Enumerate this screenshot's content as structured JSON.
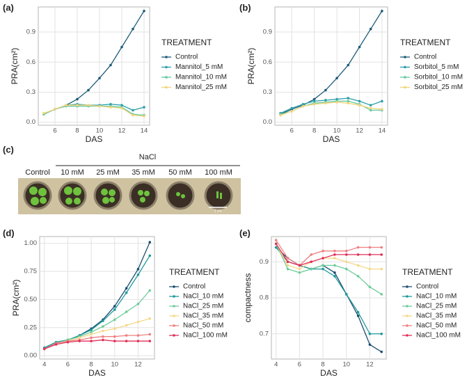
{
  "chart_data": [
    {
      "type": "line",
      "panel_label": "(a)",
      "x_label": "DAS",
      "y_label": "PRA(cm²)",
      "legend_title": "TREATMENT",
      "x": [
        5,
        6,
        7,
        8,
        9,
        10,
        11,
        12,
        13,
        14
      ],
      "xlim": [
        4.5,
        14.5
      ],
      "xticks": [
        6,
        8,
        10,
        12,
        14
      ],
      "ylim": [
        -0.03,
        1.15
      ],
      "yticks": [
        {
          "value": 0,
          "label": "0.0"
        },
        0.3,
        0.6,
        0.9
      ],
      "grid": true,
      "series": [
        {
          "name": "Control",
          "color": "#1d5b79",
          "values": [
            0.08,
            0.13,
            0.17,
            0.23,
            0.32,
            0.44,
            0.57,
            0.75,
            0.93,
            1.11
          ]
        },
        {
          "name": "Mannitol_5 mM",
          "color": "#2a9fa8",
          "values": [
            0.08,
            0.13,
            0.17,
            0.18,
            0.17,
            0.17,
            0.18,
            0.17,
            0.12,
            0.15
          ]
        },
        {
          "name": "Mannitol_10 mM",
          "color": "#63c99e",
          "values": [
            0.08,
            0.13,
            0.16,
            0.16,
            0.16,
            0.16,
            0.16,
            0.15,
            0.08,
            0.07
          ]
        },
        {
          "name": "Mannitol_25 mM",
          "color": "#f3d47c",
          "values": [
            0.09,
            0.13,
            0.17,
            0.17,
            0.17,
            0.16,
            0.15,
            0.14,
            0.07,
            0.06
          ]
        }
      ]
    },
    {
      "type": "line",
      "panel_label": "(b)",
      "x_label": "DAS",
      "y_label": "PRA(cm²)",
      "legend_title": "TREATMENT",
      "x": [
        5,
        6,
        7,
        8,
        9,
        10,
        11,
        12,
        13,
        14
      ],
      "xlim": [
        4.5,
        14.5
      ],
      "xticks": [
        6,
        8,
        10,
        12,
        14
      ],
      "ylim": [
        -0.03,
        1.15
      ],
      "yticks": [
        {
          "value": 0,
          "label": "0.0"
        },
        0.3,
        0.6,
        0.9
      ],
      "grid": true,
      "series": [
        {
          "name": "Control",
          "color": "#1d5b79",
          "values": [
            0.08,
            0.13,
            0.17,
            0.23,
            0.32,
            0.44,
            0.57,
            0.75,
            0.93,
            1.11
          ]
        },
        {
          "name": "Sorbitol_5 mM",
          "color": "#2a9fa8",
          "values": [
            0.09,
            0.14,
            0.18,
            0.21,
            0.22,
            0.23,
            0.24,
            0.21,
            0.17,
            0.21
          ]
        },
        {
          "name": "Sorbitol_10 mM",
          "color": "#63c99e",
          "values": [
            0.08,
            0.11,
            0.16,
            0.19,
            0.2,
            0.21,
            0.21,
            0.18,
            0.12,
            0.12
          ]
        },
        {
          "name": "Sorbitol_25 mM",
          "color": "#f3d47c",
          "values": [
            0.07,
            0.11,
            0.16,
            0.18,
            0.19,
            0.2,
            0.19,
            0.17,
            0.14,
            0.13
          ]
        }
      ]
    },
    {
      "type": "line",
      "panel_label": "(d)",
      "x_label": "DAS",
      "y_label": "PRA(cm²)",
      "legend_title": "TREATMENT",
      "x": [
        4,
        5,
        6,
        7,
        8,
        9,
        10,
        11,
        12,
        13
      ],
      "xlim": [
        3.6,
        13.4
      ],
      "xticks": [
        4,
        6,
        8,
        10,
        12
      ],
      "ylim": [
        -0.03,
        1.06
      ],
      "yticks": [
        {
          "value": 0,
          "label": "0.00"
        },
        {
          "value": 0.25,
          "label": "0.25"
        },
        {
          "value": 0.5,
          "label": "0.50"
        },
        {
          "value": 0.75,
          "label": "0.75"
        },
        {
          "value": 1,
          "label": "1.00"
        }
      ],
      "grid": true,
      "series": [
        {
          "name": "Control",
          "color": "#1b4f72",
          "values": [
            0.07,
            0.12,
            0.14,
            0.18,
            0.24,
            0.32,
            0.44,
            0.6,
            0.77,
            1.01
          ]
        },
        {
          "name": "NaCl_10 mM",
          "color": "#1f9a9a",
          "values": [
            0.07,
            0.12,
            0.14,
            0.18,
            0.23,
            0.31,
            0.41,
            0.56,
            0.72,
            0.89
          ]
        },
        {
          "name": "NaCl_25 mM",
          "color": "#6fcc9a",
          "values": [
            0.06,
            0.11,
            0.14,
            0.17,
            0.21,
            0.26,
            0.32,
            0.39,
            0.46,
            0.58
          ]
        },
        {
          "name": "NaCl_35 mM",
          "color": "#f5d88a",
          "values": [
            0.06,
            0.11,
            0.13,
            0.16,
            0.19,
            0.22,
            0.24,
            0.27,
            0.3,
            0.33
          ]
        },
        {
          "name": "NaCl_50 mM",
          "color": "#f08080",
          "values": [
            0.06,
            0.11,
            0.13,
            0.14,
            0.16,
            0.17,
            0.17,
            0.18,
            0.18,
            0.19
          ]
        },
        {
          "name": "NaCl_100 mM",
          "color": "#e0305a",
          "values": [
            0.06,
            0.1,
            0.12,
            0.13,
            0.13,
            0.14,
            0.13,
            0.13,
            0.13,
            0.13
          ]
        }
      ]
    },
    {
      "type": "line",
      "panel_label": "(e)",
      "x_label": "DAS",
      "y_label": "compactness",
      "legend_title": "TREATMENT",
      "x": [
        4,
        5,
        6,
        7,
        8,
        9,
        10,
        11,
        12,
        13
      ],
      "xlim": [
        3.6,
        13.4
      ],
      "xticks": [
        4,
        6,
        8,
        10,
        12
      ],
      "ylim": [
        0.63,
        0.97
      ],
      "yticks": [
        0.7,
        0.8,
        0.9
      ],
      "grid": true,
      "series": [
        {
          "name": "Control",
          "color": "#1b4f72",
          "values": [
            0.94,
            0.91,
            0.89,
            0.88,
            0.89,
            0.87,
            0.81,
            0.75,
            0.67,
            0.65
          ]
        },
        {
          "name": "NaCl_10 mM",
          "color": "#1f9a9a",
          "values": [
            0.94,
            0.9,
            0.89,
            0.88,
            0.88,
            0.86,
            0.81,
            0.76,
            0.7,
            0.7
          ]
        },
        {
          "name": "NaCl_25 mM",
          "color": "#6fcc9a",
          "values": [
            0.95,
            0.88,
            0.87,
            0.88,
            0.89,
            0.89,
            0.88,
            0.86,
            0.83,
            0.81
          ]
        },
        {
          "name": "NaCl_35 mM",
          "color": "#f5d88a",
          "values": [
            0.95,
            0.89,
            0.88,
            0.9,
            0.91,
            0.91,
            0.9,
            0.89,
            0.88,
            0.88
          ]
        },
        {
          "name": "NaCl_50 mM",
          "color": "#f08080",
          "values": [
            0.96,
            0.91,
            0.89,
            0.92,
            0.93,
            0.93,
            0.93,
            0.94,
            0.94,
            0.94
          ]
        },
        {
          "name": "NaCl_100 mM",
          "color": "#e0305a",
          "values": [
            0.95,
            0.9,
            0.89,
            0.9,
            0.91,
            0.92,
            0.92,
            0.92,
            0.92,
            0.92
          ]
        }
      ]
    }
  ],
  "photo_panel": {
    "panel_label": "(c)",
    "group_label": "NaCl",
    "control_label": "Control",
    "columns": [
      "10 mM",
      "25 mM",
      "35 mM",
      "50 mM",
      "100 mM"
    ],
    "scale_label": "1 cm"
  }
}
